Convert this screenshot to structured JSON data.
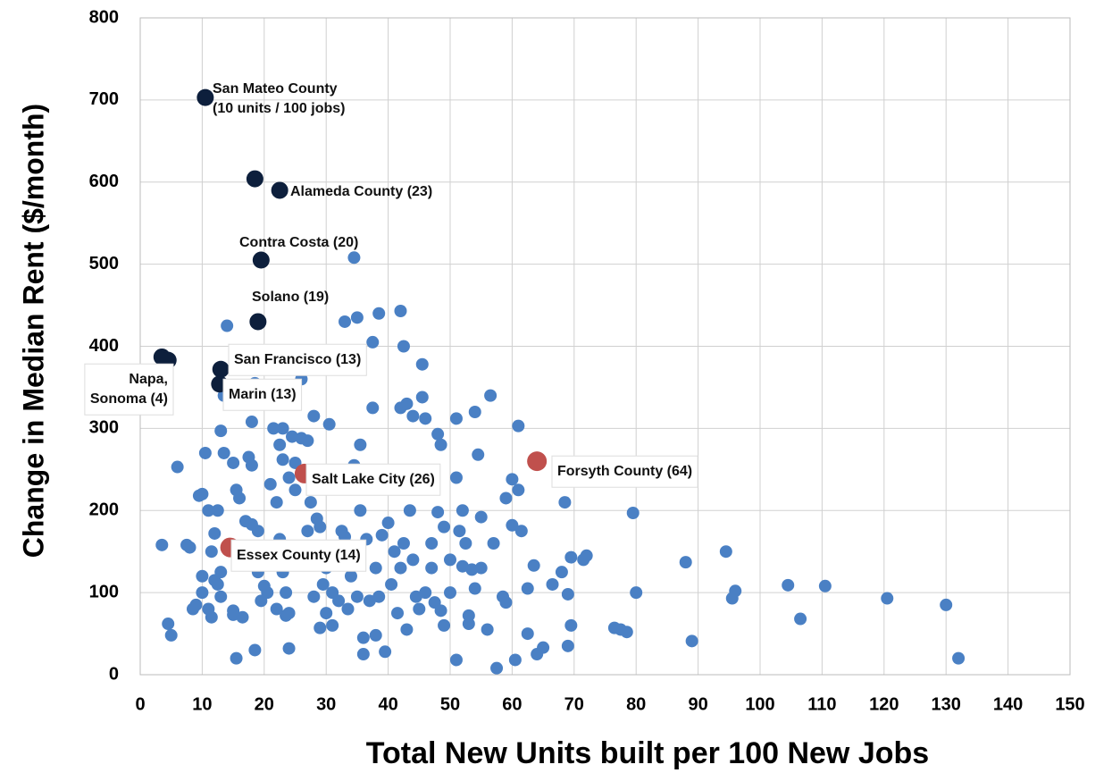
{
  "chart_data": {
    "type": "scatter",
    "x_label": "Total New Units built per 100 New Jobs",
    "y_label": "Change in Median Rent ($/month)",
    "xlim": [
      0,
      150
    ],
    "ylim": [
      0,
      800
    ],
    "xticks": [
      0,
      10,
      20,
      30,
      40,
      50,
      60,
      70,
      80,
      90,
      100,
      110,
      120,
      130,
      140,
      150
    ],
    "yticks": [
      0,
      100,
      200,
      300,
      400,
      500,
      600,
      700,
      800
    ],
    "grid": true,
    "series": [
      {
        "color": "#4a80c4",
        "x": [
          3.5,
          4.5,
          5,
          6,
          7.5,
          8,
          8.5,
          9,
          9.5,
          10,
          10,
          10,
          10.5,
          11,
          11,
          11.5,
          11.5,
          12,
          12,
          12.5,
          12.5,
          13,
          13,
          13,
          13.5,
          13.5,
          14,
          14.5,
          15,
          15,
          15,
          15.5,
          15.5,
          16,
          16.5,
          17,
          17.5,
          18,
          18,
          18,
          18.5,
          18.5,
          19,
          19,
          19.5,
          20,
          20.5,
          21,
          21.5,
          22,
          22,
          22.5,
          22.5,
          23,
          23,
          23,
          23.5,
          23.5,
          24,
          24,
          24,
          24.5,
          25,
          25,
          25.5,
          26,
          26,
          27,
          27,
          27.5,
          28,
          28,
          28.5,
          29,
          29,
          29.5,
          30,
          30,
          30.5,
          31,
          31,
          32,
          32,
          32.5,
          33,
          33,
          33.5,
          34,
          34.5,
          34.5,
          35,
          35,
          35.5,
          35.5,
          36,
          36,
          36.5,
          37,
          37.5,
          37.5,
          38,
          38,
          38.5,
          38.5,
          39,
          39.5,
          40,
          40.5,
          41,
          41.5,
          42,
          42,
          42,
          42.5,
          42.5,
          43,
          43,
          43.5,
          44,
          44,
          44.5,
          45,
          45.5,
          45.5,
          46,
          46,
          47,
          47,
          47.5,
          48,
          48,
          48.5,
          48.5,
          49,
          49,
          50,
          50,
          51,
          51,
          51,
          51.5,
          52,
          52,
          52.5,
          53,
          53,
          53.5,
          54,
          54,
          54.5,
          55,
          55,
          56,
          56.5,
          57,
          57.5,
          58.5,
          59,
          59,
          60,
          60,
          60.5,
          61,
          61,
          61.5,
          62.5,
          62.5,
          63.5,
          64,
          65,
          66.5,
          68,
          68.5,
          69,
          69,
          69.5,
          69.5,
          71.5,
          72,
          76.5,
          77.5,
          78.5,
          79.5,
          80,
          88,
          89,
          94.5,
          95.5,
          96,
          104.5,
          106.5,
          110.5,
          120.5,
          130,
          132
        ],
        "y": [
          158,
          62,
          48,
          253,
          158,
          155,
          80,
          85,
          218,
          220,
          100,
          120,
          270,
          200,
          80,
          70,
          150,
          172,
          115,
          200,
          110,
          125,
          95,
          297,
          270,
          340,
          425,
          152,
          258,
          73,
          78,
          20,
          225,
          215,
          70,
          187,
          265,
          308,
          255,
          183,
          30,
          355,
          175,
          125,
          90,
          108,
          100,
          232,
          300,
          210,
          80,
          280,
          165,
          300,
          262,
          125,
          72,
          100,
          32,
          240,
          75,
          290,
          225,
          258,
          140,
          288,
          360,
          285,
          175,
          210,
          95,
          315,
          190,
          180,
          57,
          110,
          130,
          75,
          305,
          60,
          100,
          90,
          140,
          175,
          430,
          168,
          80,
          120,
          508,
          255,
          435,
          95,
          200,
          280,
          45,
          25,
          165,
          90,
          325,
          405,
          48,
          130,
          440,
          95,
          170,
          28,
          185,
          110,
          150,
          75,
          443,
          325,
          130,
          400,
          160,
          55,
          330,
          200,
          315,
          140,
          95,
          80,
          378,
          338,
          312,
          100,
          160,
          130,
          88,
          293,
          198,
          78,
          280,
          180,
          60,
          140,
          100,
          18,
          312,
          240,
          175,
          200,
          132,
          160,
          72,
          62,
          128,
          320,
          105,
          268,
          192,
          130,
          55,
          340,
          160,
          8,
          95,
          215,
          88,
          182,
          238,
          18,
          303,
          225,
          175,
          50,
          105,
          133,
          25,
          33,
          110,
          125,
          210,
          35,
          98,
          143,
          60,
          140,
          145,
          57,
          55,
          52,
          197,
          100,
          137,
          41,
          150,
          93,
          102,
          109,
          68,
          108,
          93,
          85,
          20
        ]
      },
      {
        "color": "#0d1f3c",
        "x": [
          10.5,
          18.5,
          22.5,
          19.5,
          19,
          3.5,
          4.5,
          13,
          12.8
        ],
        "y": [
          703,
          604,
          590,
          505,
          430,
          387,
          383,
          372,
          354
        ]
      },
      {
        "color": "#c0504d",
        "x": [
          26.5,
          64,
          14.5
        ],
        "y": [
          245,
          260,
          155
        ]
      }
    ],
    "annotations": [
      [
        "San Mateo County",
        "(10 units / 100 jobs)"
      ],
      [
        "Alameda County (23)"
      ],
      [
        "Contra Costa (20)"
      ],
      [
        "Solano (19)"
      ],
      [
        "Napa,",
        "Sonoma (4)"
      ],
      [
        "San Francisco (13)"
      ],
      [
        "Marin (13)"
      ],
      [
        "Salt Lake City (26)"
      ],
      [
        "Forsyth County (64)"
      ],
      [
        "Essex County (14)"
      ]
    ]
  }
}
